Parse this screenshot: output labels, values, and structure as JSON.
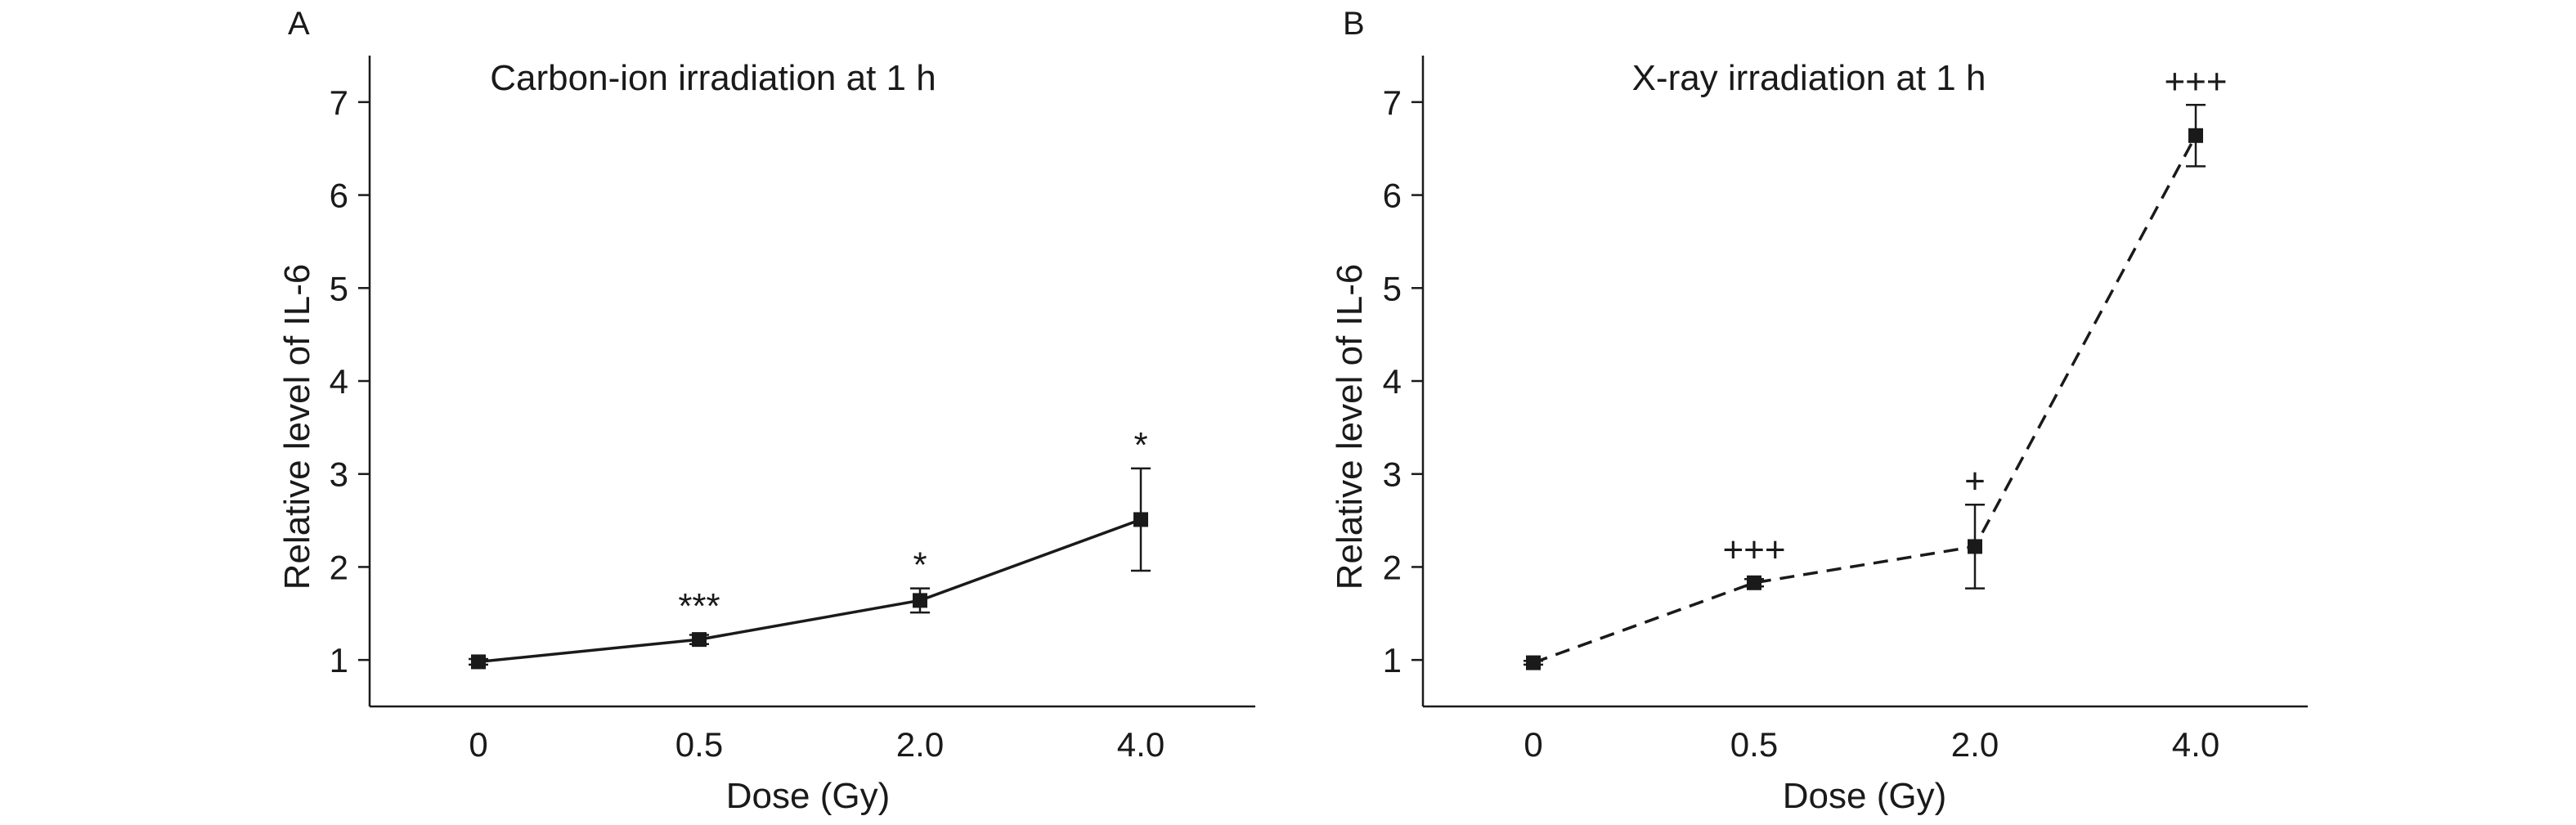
{
  "chart_data": [
    {
      "type": "line",
      "panel_label": "A",
      "title": "Carbon-ion irradiation at 1 h",
      "xlabel": "Dose (Gy)",
      "ylabel": "Relative level of IL-6",
      "categories": [
        "0",
        "0.5",
        "2.0",
        "4.0"
      ],
      "ylim": [
        0.5,
        7.5
      ],
      "yticks": [
        1,
        2,
        3,
        4,
        5,
        6,
        7
      ],
      "line_style": "solid",
      "grid": false,
      "series": [
        {
          "values": [
            0.98,
            1.22,
            1.64,
            2.51
          ],
          "error": [
            0.03,
            0.05,
            0.13,
            0.55
          ],
          "annotations": [
            "",
            "***",
            "*",
            "*"
          ]
        }
      ]
    },
    {
      "type": "line",
      "panel_label": "B",
      "title": "X-ray irradiation at 1 h",
      "xlabel": "Dose (Gy)",
      "ylabel": "Relative level of IL-6",
      "categories": [
        "0",
        "0.5",
        "2.0",
        "4.0"
      ],
      "ylim": [
        0.5,
        7.5
      ],
      "yticks": [
        1,
        2,
        3,
        4,
        5,
        6,
        7
      ],
      "line_style": "dashed",
      "grid": false,
      "series": [
        {
          "values": [
            0.97,
            1.83,
            2.22,
            6.64
          ],
          "error": [
            0.02,
            0.04,
            0.45,
            0.33
          ],
          "annotations": [
            "",
            "+++",
            "+",
            "+++"
          ]
        }
      ]
    }
  ]
}
